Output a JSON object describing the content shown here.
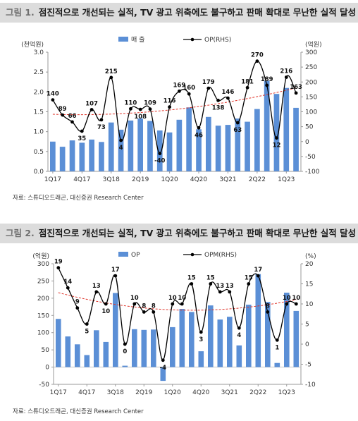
{
  "figures": [
    {
      "number": "그림 1.",
      "title": "점진적으로 개선되는 실적, TV 광고 위축에도 불구하고 판매 확대로 무난한 실적 달성",
      "source": "자료: 스튜디오드래곤, 대신증권 Research Center"
    },
    {
      "number": "그림 2.",
      "title": "점진적으로 개선되는 실적, TV 광고 위축에도 불구하고 판매 확대로 무난한 실적 달성",
      "source": "자료: 스튜디오드래곤, 대신증권 Research Center"
    }
  ],
  "chart_data": [
    {
      "type": "bar",
      "left_unit": "(천억원)",
      "right_unit": "(억원)",
      "categories": [
        "1Q17",
        "2Q17",
        "3Q17",
        "4Q17",
        "1Q18",
        "2Q18",
        "3Q18",
        "4Q18",
        "1Q19",
        "2Q19",
        "3Q19",
        "4Q19",
        "1Q20",
        "2Q20",
        "3Q20",
        "4Q20",
        "1Q21",
        "2Q21",
        "3Q21",
        "4Q21",
        "1Q22",
        "2Q22",
        "3Q22",
        "4Q22",
        "1Q23",
        "2Q23"
      ],
      "x_tick_labels": [
        "1Q17",
        "4Q17",
        "3Q18",
        "2Q19",
        "1Q20",
        "4Q20",
        "3Q21",
        "2Q22",
        "1Q23"
      ],
      "series": [
        {
          "name": "매 출",
          "kind": "bar",
          "axis": "left",
          "color": "#5b8fd6",
          "values": [
            0.75,
            0.62,
            0.78,
            0.72,
            0.8,
            0.74,
            1.23,
            1.05,
            1.28,
            1.33,
            1.27,
            1.03,
            0.98,
            1.3,
            1.61,
            1.06,
            1.37,
            1.15,
            1.17,
            1.33,
            1.25,
            1.57,
            2.28,
            1.95,
            2.1,
            1.6
          ]
        },
        {
          "name": "OP(RHS)",
          "kind": "line",
          "axis": "right",
          "color": "#000000",
          "values": [
            140,
            89,
            66,
            35,
            107,
            73,
            215,
            4,
            110,
            108,
            109,
            -40,
            116,
            169,
            160,
            46,
            179,
            138,
            146,
            63,
            181,
            270,
            189,
            12,
            216,
            163
          ]
        }
      ],
      "trend": {
        "kind": "dashed-trend",
        "color": "#e0352b"
      },
      "left_ylim": [
        0,
        3.0
      ],
      "left_ticks": [
        "0.0",
        "0.5",
        "1.0",
        "1.5",
        "2.0",
        "2.5",
        "3.0"
      ],
      "right_ylim": [
        -100,
        300
      ],
      "right_ticks": [
        "-100",
        "-50",
        "0",
        "50",
        "100",
        "150",
        "200",
        "250",
        "300"
      ]
    },
    {
      "type": "bar",
      "left_unit": "(억원)",
      "right_unit": "(%)",
      "categories": [
        "1Q17",
        "2Q17",
        "3Q17",
        "4Q17",
        "1Q18",
        "2Q18",
        "3Q18",
        "4Q18",
        "1Q19",
        "2Q19",
        "3Q19",
        "4Q19",
        "1Q20",
        "2Q20",
        "3Q20",
        "4Q20",
        "1Q21",
        "2Q21",
        "3Q21",
        "4Q21",
        "1Q22",
        "2Q22",
        "3Q22",
        "4Q22",
        "1Q23",
        "2Q23"
      ],
      "x_tick_labels": [
        "1Q17",
        "4Q17",
        "3Q18",
        "2Q19",
        "1Q20",
        "4Q20",
        "3Q21",
        "2Q22",
        "1Q23"
      ],
      "series": [
        {
          "name": "OP",
          "kind": "bar",
          "axis": "left",
          "color": "#5b8fd6",
          "values": [
            140,
            89,
            66,
            35,
            107,
            73,
            215,
            4,
            110,
            108,
            109,
            -40,
            116,
            169,
            160,
            46,
            179,
            138,
            146,
            63,
            181,
            270,
            189,
            12,
            216,
            163
          ]
        },
        {
          "name": "OPM(RHS)",
          "kind": "line",
          "axis": "right",
          "color": "#000000",
          "values": [
            19,
            14,
            9,
            5,
            13,
            10,
            17,
            0,
            10,
            8,
            8,
            -4,
            10,
            10,
            15,
            3,
            15,
            13,
            13,
            4,
            15,
            17,
            8,
            1,
            10,
            10
          ]
        }
      ],
      "trend": {
        "kind": "dashed-trend",
        "color": "#e0352b"
      },
      "left_ylim": [
        -50,
        300
      ],
      "left_ticks": [
        "-50",
        "0",
        "50",
        "100",
        "150",
        "200",
        "250",
        "300"
      ],
      "right_ylim": [
        -10,
        20
      ],
      "right_ticks": [
        "-10",
        "-5",
        "0",
        "5",
        "10",
        "15",
        "20"
      ]
    }
  ]
}
